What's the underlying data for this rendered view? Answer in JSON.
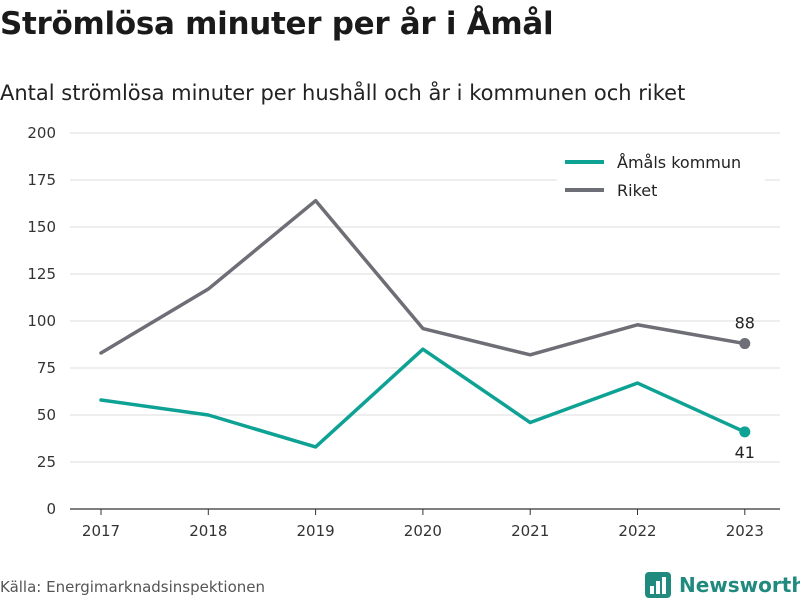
{
  "title": "Strömlösa minuter per år i Åmål",
  "subtitle": "Antal strömlösa minuter per hushåll och år i kommunen och riket",
  "source": "Källa: Energimarknadsinspektionen",
  "brand": {
    "name": "Newsworthy",
    "icon": "newsworthy-logo-icon",
    "color": "#1f8a7d"
  },
  "chart_data": {
    "type": "line",
    "title": "Strömlösa minuter per år i Åmål",
    "subtitle": "Antal strömlösa minuter per hushåll och år i kommunen och riket",
    "x": [
      "2017",
      "2018",
      "2019",
      "2020",
      "2021",
      "2022",
      "2023"
    ],
    "ylim": [
      0,
      200
    ],
    "yticks": [
      "0",
      "25",
      "50",
      "75",
      "100",
      "125",
      "150",
      "175",
      "200"
    ],
    "grid": true,
    "legend": "top-right",
    "series": [
      {
        "name": "Åmåls kommun",
        "color": "#0ea294",
        "values": [
          58,
          50,
          33,
          85,
          46,
          67,
          41
        ],
        "end_label": "41"
      },
      {
        "name": "Riket",
        "color": "#6e6e76",
        "values": [
          83,
          117,
          164,
          96,
          82,
          98,
          88
        ],
        "end_label": "88"
      }
    ]
  }
}
